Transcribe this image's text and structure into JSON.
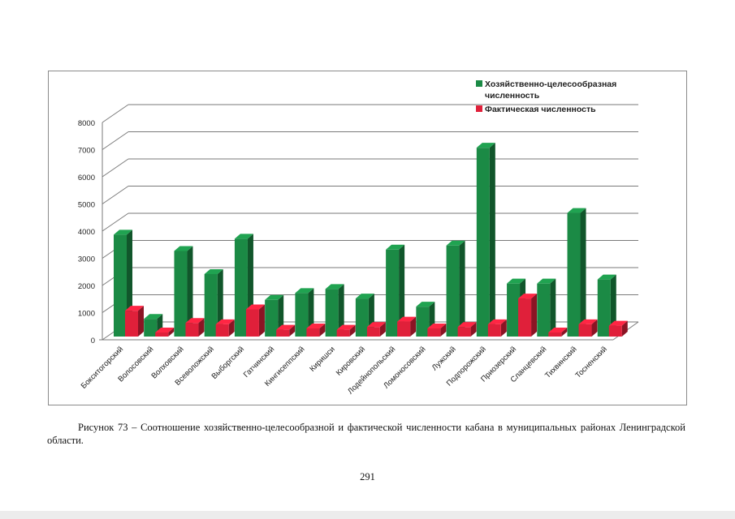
{
  "chart_data": {
    "type": "bar",
    "title": "",
    "xlabel": "",
    "ylabel": "",
    "ylim": [
      0,
      8000
    ],
    "yticks": [
      0,
      1000,
      2000,
      3000,
      4000,
      5000,
      6000,
      7000,
      8000
    ],
    "legend_position": "top-right",
    "categories": [
      "Бокситогорский",
      "Волосовский",
      "Волховский",
      "Всеволожский",
      "Выборгский",
      "Гатчинский",
      "Кингисеппский",
      "Киришси",
      "Кировский",
      "Лодейнопольский",
      "Ломоносовский",
      "Лужский",
      "Подпорожский",
      "Приозерский",
      "Сланцевский",
      "Тихвинский",
      "Тосненский"
    ],
    "series": [
      {
        "name": "Хозяйственно-целесообразная численность",
        "color": "#1b8a45",
        "values": [
          3750,
          650,
          3150,
          2300,
          3600,
          1350,
          1600,
          1750,
          1400,
          3200,
          1100,
          3350,
          6950,
          1950,
          1950,
          4550,
          2100
        ]
      },
      {
        "name": "Фактическая численность",
        "color": "#e0203a",
        "values": [
          950,
          150,
          500,
          450,
          1000,
          250,
          300,
          250,
          350,
          550,
          300,
          350,
          450,
          1400,
          150,
          450,
          400
        ]
      }
    ]
  },
  "legend": {
    "line1": "Хозяйственно-целесообразная",
    "line2": "численность",
    "line3": "Фактическая численность"
  },
  "caption": {
    "text": "Рисунок 73 – Соотношение хозяйственно-целесообразной и фактической численности кабана в муниципальных районах Ленинградской области."
  },
  "page_number": "291"
}
